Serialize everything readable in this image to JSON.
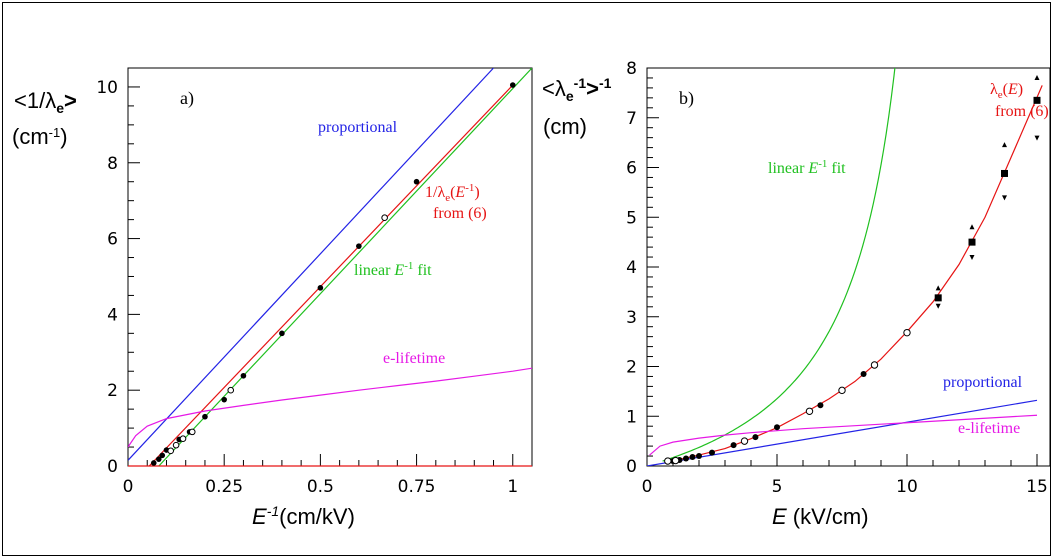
{
  "colors": {
    "blue": "#2323e6",
    "green": "#1fc01f",
    "red": "#e61414",
    "magenta": "#e619e6",
    "black": "#000000"
  },
  "chart_data": [
    {
      "type": "line",
      "panel_label": "a)",
      "xlabel": "E-1(cm/kV)",
      "xlabel_parts": [
        "E",
        "-1",
        "(cm/kV)"
      ],
      "ylabel_lines": [
        "<1/λe>",
        "(cm-1)"
      ],
      "ylabel_parts": {
        "line1_pre": "<1/λ",
        "line1_sub": "e",
        "line1_post": ">",
        "line2_pre": "(cm",
        "line2_sup": "-1",
        "line2_post": ")"
      },
      "xlim": [
        0,
        1.05
      ],
      "ylim": [
        0,
        10.5
      ],
      "xticks": [
        0,
        0.25,
        0.5,
        0.75,
        1
      ],
      "xtick_labels": [
        "0",
        "0.25",
        "0.5",
        "0.75",
        "1"
      ],
      "yticks": [
        0,
        2,
        4,
        6,
        8,
        10
      ],
      "ytick_labels": [
        "0",
        "2",
        "4",
        "6",
        "8",
        "10"
      ],
      "series": [
        {
          "name": "proportional",
          "color": "#2323e6",
          "x": [
            0,
            0.95
          ],
          "y": [
            0.15,
            10.5
          ]
        },
        {
          "name": "linear E-1 fit",
          "color": "#1fc01f",
          "x": [
            0.08,
            1.05
          ],
          "y": [
            0,
            10.5
          ]
        },
        {
          "color": "#e61414",
          "x": [
            0.055,
            1.0
          ],
          "y": [
            0,
            10.05
          ]
        },
        {
          "name": "e-lifetime",
          "color": "#e619e6",
          "x": [
            0.0,
            0.02,
            0.05,
            0.1,
            0.2,
            0.3,
            0.4,
            0.5,
            0.6,
            0.7,
            0.8,
            0.9,
            1.0,
            1.05
          ],
          "y": [
            0.5,
            0.8,
            1.05,
            1.25,
            1.45,
            1.6,
            1.74,
            1.87,
            2.0,
            2.12,
            2.24,
            2.37,
            2.5,
            2.58
          ]
        }
      ],
      "points_filled": [
        [
          0.067,
          0.08
        ],
        [
          0.08,
          0.18
        ],
        [
          0.089,
          0.28
        ],
        [
          0.1,
          0.42
        ],
        [
          0.133,
          0.7
        ],
        [
          0.16,
          0.9
        ],
        [
          0.2,
          1.3
        ],
        [
          0.25,
          1.75
        ],
        [
          0.3,
          2.38
        ],
        [
          0.4,
          3.5
        ],
        [
          0.5,
          4.7
        ],
        [
          0.6,
          5.8
        ],
        [
          0.75,
          7.5
        ],
        [
          1.0,
          10.05
        ]
      ],
      "points_open": [
        [
          0.111,
          0.4
        ],
        [
          0.125,
          0.55
        ],
        [
          0.143,
          0.72
        ],
        [
          0.167,
          0.9
        ],
        [
          0.267,
          2.0
        ],
        [
          0.667,
          6.55
        ]
      ],
      "annotations": [
        {
          "text": "proportional",
          "color": "#2323e6"
        },
        {
          "text": "1/λe(E-1)",
          "color": "#e61414",
          "parts": [
            "1/λ",
            "e",
            "(",
            "E",
            "-1",
            ")"
          ]
        },
        {
          "text": "from (6)",
          "color": "#e61414"
        },
        {
          "text": "linear E-1 fit",
          "color": "#1fc01f",
          "parts": [
            "linear ",
            "E",
            "-1",
            " fit"
          ]
        },
        {
          "text": "e-lifetime",
          "color": "#e619e6"
        }
      ]
    },
    {
      "type": "line",
      "panel_label": "b)",
      "xlabel": "E (kV/cm)",
      "xlabel_parts": [
        "E",
        " (kV/cm)"
      ],
      "ylabel_lines": [
        "<λe-1>-1",
        "(cm)"
      ],
      "ylabel_parts": {
        "line1_pre": "<λ",
        "line1_sub": "e",
        "line1_sup": "-1",
        "line1_mid": ">",
        "line1_sup2": "-1",
        "line2": "(cm)"
      },
      "xlim": [
        0,
        15.5
      ],
      "ylim": [
        0,
        8
      ],
      "xticks": [
        0,
        5,
        10,
        15
      ],
      "xtick_labels": [
        "0",
        "5",
        "10",
        "15"
      ],
      "yticks": [
        0,
        1,
        2,
        3,
        4,
        5,
        6,
        7,
        8
      ],
      "ytick_labels": [
        "0",
        "1",
        "2",
        "3",
        "4",
        "5",
        "6",
        "7",
        "8"
      ],
      "series": [
        {
          "name": "proportional",
          "color": "#2323e6",
          "x": [
            0,
            15
          ],
          "y": [
            0,
            1.32
          ]
        },
        {
          "name": "linear E-1 fit",
          "color": "#1fc01f"
        },
        {
          "name": "λe(E)",
          "color": "#e61414",
          "x": [
            0.8,
            2,
            3,
            4,
            5,
            6,
            7,
            8,
            9,
            10,
            11,
            12,
            13,
            14,
            15.2
          ],
          "y": [
            0.08,
            0.22,
            0.35,
            0.55,
            0.77,
            1.05,
            1.35,
            1.7,
            2.15,
            2.7,
            3.3,
            4.05,
            5.0,
            6.2,
            7.65
          ]
        },
        {
          "name": "e-lifetime",
          "color": "#e619e6",
          "x": [
            0.1,
            0.5,
            1,
            2,
            3,
            4,
            5,
            6,
            7,
            8,
            9,
            10,
            11,
            12,
            13,
            14,
            15
          ],
          "y": [
            0.22,
            0.4,
            0.48,
            0.56,
            0.62,
            0.67,
            0.71,
            0.75,
            0.78,
            0.81,
            0.84,
            0.87,
            0.9,
            0.93,
            0.96,
            0.99,
            1.02
          ]
        }
      ],
      "points_filled": [
        [
          1.0,
          0.1
        ],
        [
          1.25,
          0.12
        ],
        [
          1.5,
          0.15
        ],
        [
          1.75,
          0.18
        ],
        [
          2.0,
          0.2
        ],
        [
          2.5,
          0.27
        ],
        [
          3.33,
          0.42
        ],
        [
          4.17,
          0.58
        ],
        [
          5.0,
          0.78
        ],
        [
          6.67,
          1.22
        ],
        [
          8.33,
          1.85
        ]
      ],
      "points_open": [
        [
          0.8,
          0.1
        ],
        [
          1.1,
          0.11
        ],
        [
          3.75,
          0.5
        ],
        [
          6.25,
          1.1
        ],
        [
          7.5,
          1.52
        ],
        [
          8.75,
          2.03
        ],
        [
          10.0,
          2.68
        ]
      ],
      "points_square": [
        [
          11.2,
          3.38
        ],
        [
          12.5,
          4.5
        ],
        [
          13.75,
          5.88
        ],
        [
          15.0,
          7.35
        ]
      ],
      "points_up": [
        [
          11.2,
          3.57
        ],
        [
          12.5,
          4.8
        ],
        [
          13.75,
          6.45
        ],
        [
          15.0,
          7.8
        ]
      ],
      "points_down": [
        [
          11.2,
          3.22
        ],
        [
          12.5,
          4.2
        ],
        [
          13.75,
          5.4
        ],
        [
          15.0,
          6.6
        ]
      ],
      "annotations": [
        {
          "text": "linear E-1 fit",
          "color": "#1fc01f",
          "parts": [
            "linear ",
            "E",
            "-1",
            " fit"
          ]
        },
        {
          "text": "λe(E)",
          "color": "#e61414",
          "parts": [
            "λ",
            "e",
            "(",
            "E",
            ")"
          ]
        },
        {
          "text": "from (6)",
          "color": "#e61414"
        },
        {
          "text": "proportional",
          "color": "#2323e6"
        },
        {
          "text": "e-lifetime",
          "color": "#e619e6"
        }
      ]
    }
  ]
}
